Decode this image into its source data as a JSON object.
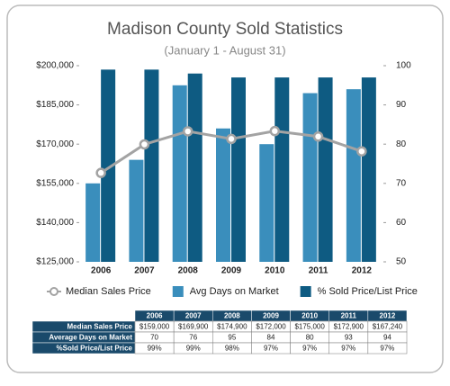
{
  "chart_data": {
    "type": "bar-line",
    "title": "Madison County Sold Statistics",
    "subtitle": "(January 1 - August 31)",
    "categories": [
      "2006",
      "2007",
      "2008",
      "2009",
      "2010",
      "2011",
      "2012"
    ],
    "series": [
      {
        "name": "Median Sales Price",
        "type": "line",
        "color": "#a3a3a3",
        "axis": "y",
        "values": [
          159000,
          169900,
          174900,
          172000,
          175000,
          172900,
          167240
        ],
        "value_labels": [
          "$159,000",
          "$169,900",
          "$174,900",
          "$172,000",
          "$175,000",
          "$172,900",
          "$167,240"
        ]
      },
      {
        "name": "Avg Days on Market",
        "type": "bar",
        "color": "#3a8ebc",
        "axis": "y2",
        "values": [
          70,
          76,
          95,
          84,
          80,
          93,
          94
        ]
      },
      {
        "name": "% Sold Price/List Price",
        "type": "bar",
        "color": "#0e5b82",
        "axis": "y2",
        "values": [
          99,
          99,
          98,
          97,
          97,
          97,
          97
        ],
        "value_labels": [
          "99%",
          "99%",
          "98%",
          "97%",
          "97%",
          "97%",
          "97%"
        ]
      }
    ],
    "ylim": [
      125000,
      200000
    ],
    "yticks": [
      {
        "value": 125000,
        "label": "$125,000"
      },
      {
        "value": 140000,
        "label": "$140,000"
      },
      {
        "value": 155000,
        "label": "$155,000"
      },
      {
        "value": 170000,
        "label": "$170,000"
      },
      {
        "value": 185000,
        "label": "$185,000"
      },
      {
        "value": 200000,
        "label": "$200,000"
      }
    ],
    "y2lim": [
      50,
      100
    ],
    "y2ticks": [
      50,
      60,
      70,
      80,
      90,
      100
    ]
  },
  "table": {
    "row_labels": [
      "Median Sales Price",
      "Average Days on Market",
      "%Sold Price/List Price"
    ]
  }
}
